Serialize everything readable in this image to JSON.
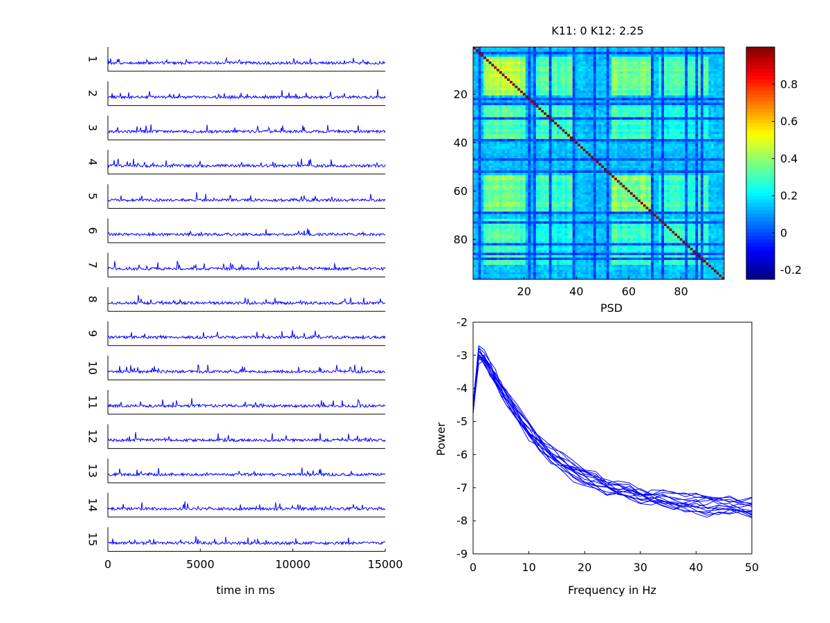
{
  "figure": {
    "background": "#ffffff",
    "trace_color": "#0000ff"
  },
  "chart_data": [
    {
      "type": "line",
      "title": "",
      "xlabel": "time in ms",
      "ylabel": "",
      "xlim": [
        0,
        15000
      ],
      "xticks": [
        0,
        5000,
        10000,
        15000
      ],
      "xtick_labels": [
        "0",
        "5000",
        "10000",
        "15000"
      ],
      "channel_labels": [
        "1",
        "2",
        "3",
        "4",
        "5",
        "6",
        "7",
        "8",
        "9",
        "10",
        "11",
        "12",
        "13",
        "14",
        "15"
      ],
      "series_count": 15,
      "notes": "Stacked per-channel time series (noisy activity traces)"
    },
    {
      "type": "heatmap",
      "title": "K11: 0 K12: 2.25",
      "xlabel": "PSD",
      "ylabel": "",
      "matrix_size": 96,
      "xticks": [
        20,
        40,
        60,
        80
      ],
      "yticks": [
        20,
        40,
        60,
        80
      ],
      "colormap": "jet",
      "colorbar": {
        "range": [
          -0.25,
          1.0
        ],
        "ticks": [
          -0.2,
          0,
          0.2,
          0.4,
          0.6,
          0.8
        ],
        "tick_labels": [
          "-0.2",
          "0",
          "0.2",
          "0.4",
          "0.6",
          "0.8"
        ]
      },
      "diagonal_value": 1.0,
      "blocks": [
        {
          "range": [
            5,
            20
          ],
          "level": 0.45
        },
        {
          "range": [
            25,
            38
          ],
          "level": 0.3
        },
        {
          "range": [
            54,
            68
          ],
          "level": 0.42
        },
        {
          "range": [
            72,
            90
          ],
          "level": 0.28
        }
      ],
      "low_correlation_channels": [
        3,
        22,
        24,
        30,
        39,
        47,
        52,
        69,
        73,
        82,
        86,
        88
      ],
      "background_level": 0.15
    },
    {
      "type": "line",
      "title": "",
      "xlabel": "Frequency in Hz",
      "ylabel": "Power",
      "xlim": [
        0,
        50
      ],
      "ylim": [
        -9,
        -2
      ],
      "xticks": [
        0,
        10,
        20,
        30,
        40,
        50
      ],
      "yticks": [
        -9,
        -8,
        -7,
        -6,
        -5,
        -4,
        -3,
        -2
      ],
      "series_count": 15,
      "x": [
        0,
        1,
        2,
        3,
        4,
        5,
        6,
        8,
        10,
        12,
        14,
        16,
        18,
        20,
        22,
        24,
        26,
        28,
        30,
        32,
        34,
        36,
        38,
        40,
        42,
        44,
        46,
        48,
        50
      ],
      "mean_curve": [
        -4.6,
        -3.0,
        -3.1,
        -3.4,
        -3.7,
        -4.0,
        -4.3,
        -4.8,
        -5.3,
        -5.7,
        -6.0,
        -6.2,
        -6.45,
        -6.65,
        -6.8,
        -6.95,
        -7.05,
        -7.15,
        -7.25,
        -7.3,
        -7.35,
        -7.4,
        -7.45,
        -7.5,
        -7.55,
        -7.55,
        -7.6,
        -7.6,
        -7.6
      ]
    }
  ]
}
